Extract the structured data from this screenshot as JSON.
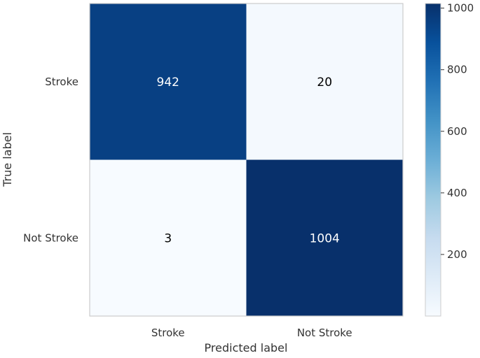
{
  "chart_data": {
    "type": "heatmap",
    "title": "",
    "xlabel": "Predicted label",
    "ylabel": "True label",
    "x_categories": [
      "Stroke",
      "Not Stroke"
    ],
    "y_categories": [
      "Stroke",
      "Not Stroke"
    ],
    "values": [
      [
        942,
        20
      ],
      [
        3,
        1004
      ]
    ],
    "colormap": "Blues",
    "color_range": [
      3,
      1004
    ],
    "colorbar": {
      "ticks": [
        200,
        400,
        600,
        800,
        1000
      ],
      "tick_labels": [
        "200",
        "400",
        "600",
        "800",
        "1000"
      ]
    },
    "grid": false
  }
}
